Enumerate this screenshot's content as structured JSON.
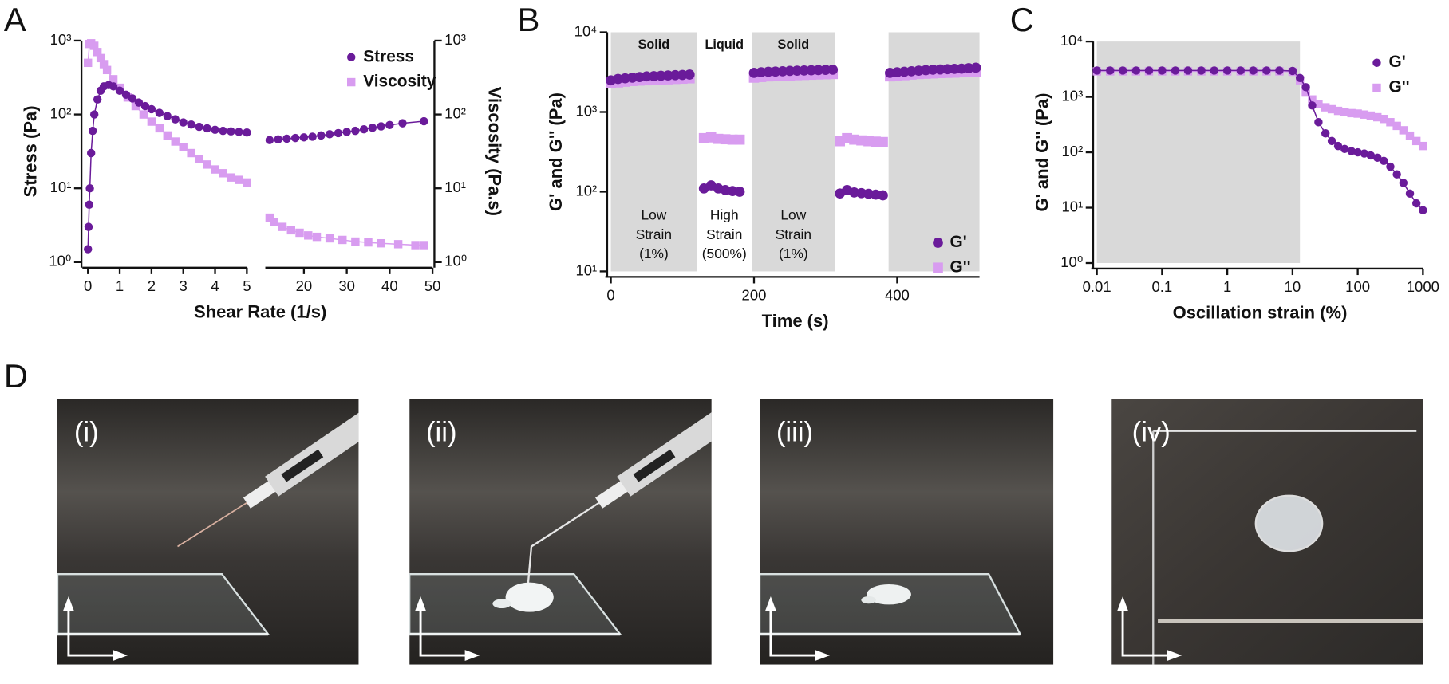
{
  "panel_labels": [
    "A",
    "B",
    "C",
    "D"
  ],
  "photo_labels": [
    "(i)",
    "(ii)",
    "(iii)",
    "(iv)"
  ],
  "chart_data": [
    {
      "type": "line",
      "xlabel": "Shear Rate (1/s)",
      "ylabel": "Stress (Pa)",
      "y2label": "Viscosity (Pa.s)",
      "x_segments": [
        {
          "xlim": [
            0,
            5
          ],
          "xticks": [
            0,
            1,
            2,
            3,
            4,
            5
          ]
        },
        {
          "xlim": [
            11,
            50
          ],
          "xticks": [
            20,
            30,
            40,
            50
          ]
        }
      ],
      "ylog": true,
      "ylim": [
        1,
        1000
      ],
      "yticks": [
        {
          "value": 1,
          "label": "10⁰"
        },
        {
          "value": 10,
          "label": "10¹"
        },
        {
          "value": 100,
          "label": "10²"
        },
        {
          "value": 1000,
          "label": "10³"
        }
      ],
      "y2lim": [
        1,
        1000
      ],
      "y2ticks": [
        {
          "value": 1,
          "label": "10⁰"
        },
        {
          "value": 10,
          "label": "10¹"
        },
        {
          "value": 100,
          "label": "10²"
        },
        {
          "value": 1000,
          "label": "10³"
        }
      ],
      "legend": "upper right",
      "series": [
        {
          "name": "Stress",
          "color": "#6a1b9a",
          "marker": "circle",
          "x": [
            0,
            0.02,
            0.04,
            0.06,
            0.1,
            0.15,
            0.2,
            0.3,
            0.4,
            0.5,
            0.65,
            0.8,
            1,
            1.2,
            1.4,
            1.6,
            1.8,
            2,
            2.25,
            2.5,
            2.75,
            3,
            3.25,
            3.5,
            3.75,
            4,
            4.25,
            4.5,
            4.75,
            5,
            12,
            14,
            16,
            18,
            20,
            22,
            24,
            26,
            28,
            30,
            32,
            34,
            36,
            38,
            40,
            43,
            48
          ],
          "values": [
            1.5,
            3,
            6,
            10,
            30,
            60,
            100,
            160,
            210,
            240,
            250,
            240,
            210,
            185,
            165,
            145,
            130,
            118,
            105,
            95,
            86,
            78,
            73,
            68,
            65,
            62,
            60,
            59,
            58,
            57,
            45,
            46,
            47,
            48,
            49,
            50,
            52,
            54,
            56,
            58,
            60,
            63,
            66,
            69,
            72,
            76,
            81
          ]
        },
        {
          "name": "Viscosity",
          "color": "#d89cf0",
          "marker": "square",
          "axis": "y2",
          "x": [
            0,
            0.05,
            0.1,
            0.2,
            0.3,
            0.4,
            0.5,
            0.6,
            0.8,
            1,
            1.25,
            1.5,
            1.75,
            2,
            2.25,
            2.5,
            2.75,
            3,
            3.25,
            3.5,
            3.75,
            4,
            4.25,
            4.5,
            4.75,
            5,
            12,
            13,
            15,
            17,
            19,
            21,
            23,
            26,
            29,
            32,
            35,
            38,
            42,
            46,
            48
          ],
          "values": [
            500,
            900,
            920,
            850,
            700,
            580,
            480,
            400,
            300,
            230,
            170,
            130,
            100,
            80,
            65,
            52,
            43,
            36,
            30,
            25,
            21,
            18,
            16,
            14,
            13,
            12,
            4,
            3.5,
            3,
            2.7,
            2.5,
            2.3,
            2.2,
            2.1,
            2,
            1.9,
            1.85,
            1.8,
            1.75,
            1.7,
            1.7
          ]
        }
      ]
    },
    {
      "type": "scatter",
      "xlabel": "Time (s)",
      "ylabel": "G' and G'' (Pa)",
      "xlim": [
        0,
        515
      ],
      "xticks": [
        0,
        200,
        400
      ],
      "ylog": true,
      "ylim": [
        10,
        10000
      ],
      "yticks": [
        {
          "value": 10,
          "label": "10¹"
        },
        {
          "value": 100,
          "label": "10²"
        },
        {
          "value": 1000,
          "label": "10³"
        },
        {
          "value": 10000,
          "label": "10⁴"
        }
      ],
      "shade_color": "#d9d9d9",
      "phases": [
        {
          "xlim": [
            0,
            120
          ],
          "shaded": true,
          "label": "Solid",
          "strain": [
            "Low",
            "Strain",
            "(1%)"
          ]
        },
        {
          "xlim": [
            120,
            197
          ],
          "shaded": false,
          "label": "Liquid",
          "strain": [
            "High",
            "Strain",
            "(500%)"
          ]
        },
        {
          "xlim": [
            197,
            313
          ],
          "shaded": true,
          "label": "Solid",
          "strain": [
            "Low",
            "Strain",
            "(1%)"
          ]
        },
        {
          "xlim": [
            313,
            388
          ],
          "shaded": false
        },
        {
          "xlim": [
            388,
            515
          ],
          "shaded": true
        }
      ],
      "legend": "lower right",
      "x": [
        0,
        10,
        20,
        30,
        40,
        50,
        60,
        70,
        80,
        90,
        100,
        110,
        120,
        130,
        140,
        150,
        160,
        170,
        180,
        190,
        200,
        210,
        220,
        230,
        240,
        250,
        260,
        270,
        280,
        290,
        300,
        310,
        315,
        320,
        330,
        340,
        350,
        360,
        370,
        380,
        385,
        390,
        400,
        410,
        420,
        430,
        440,
        450,
        460,
        470,
        480,
        490,
        500,
        510
      ],
      "series": [
        {
          "name": "G'",
          "color": "#6a1b9a",
          "marker": "circle",
          "values": [
            2500,
            2600,
            2650,
            2700,
            2750,
            2800,
            2820,
            2850,
            2880,
            2900,
            2920,
            2950,
            null,
            110,
            120,
            110,
            105,
            102,
            100,
            null,
            3100,
            3150,
            3200,
            3220,
            3250,
            3280,
            3300,
            3320,
            3340,
            3360,
            3380,
            3400,
            null,
            95,
            105,
            98,
            96,
            94,
            92,
            90,
            null,
            3100,
            3150,
            3200,
            3250,
            3300,
            3350,
            3400,
            3420,
            3450,
            3480,
            3500,
            3550,
            3600
          ]
        },
        {
          "name": "G''",
          "color": "#d89cf0",
          "marker": "square",
          "values": [
            2300,
            2350,
            2400,
            2450,
            2480,
            2500,
            2520,
            2550,
            2570,
            2600,
            2620,
            2650,
            null,
            470,
            480,
            460,
            455,
            450,
            450,
            null,
            2700,
            2750,
            2800,
            2820,
            2850,
            2870,
            2900,
            2920,
            2940,
            2960,
            2980,
            3000,
            null,
            430,
            470,
            450,
            440,
            430,
            425,
            420,
            null,
            2800,
            2850,
            2900,
            2950,
            3000,
            3020,
            3050,
            3080,
            3100,
            3120,
            3150,
            3180,
            3200
          ]
        }
      ]
    },
    {
      "type": "line",
      "xlabel": "Oscillation strain (%)",
      "ylabel": "G' and G'' (Pa)",
      "xlog": true,
      "xlim": [
        0.01,
        1000
      ],
      "xticks": [
        0.01,
        0.1,
        1,
        10,
        100,
        1000
      ],
      "ylog": true,
      "ylim": [
        1,
        10000
      ],
      "yticks": [
        {
          "value": 1,
          "label": "10⁰"
        },
        {
          "value": 10,
          "label": "10¹"
        },
        {
          "value": 100,
          "label": "10²"
        },
        {
          "value": 1000,
          "label": "10³"
        },
        {
          "value": 10000,
          "label": "10⁴"
        }
      ],
      "shade_color": "#d9d9d9",
      "shaded": [
        0.01,
        13
      ],
      "legend": "upper right",
      "x": [
        0.01,
        0.016,
        0.025,
        0.04,
        0.063,
        0.1,
        0.16,
        0.25,
        0.4,
        0.63,
        1,
        1.6,
        2.5,
        4,
        6.3,
        10,
        13,
        16,
        20,
        25,
        32,
        40,
        50,
        63,
        80,
        100,
        126,
        158,
        200,
        251,
        316,
        398,
        501,
        631,
        794,
        1000
      ],
      "series": [
        {
          "name": "G'",
          "color": "#6a1b9a",
          "marker": "circle",
          "values": [
            3000,
            3000,
            3000,
            3000,
            3000,
            3000,
            3000,
            3000,
            3000,
            3000,
            3000,
            3000,
            3000,
            3000,
            3000,
            2950,
            2200,
            1500,
            700,
            350,
            220,
            160,
            130,
            115,
            105,
            100,
            95,
            88,
            80,
            70,
            55,
            40,
            28,
            18,
            12,
            9
          ]
        },
        {
          "name": "G''",
          "color": "#d89cf0",
          "marker": "square",
          "values": [
            2900,
            2900,
            2900,
            2900,
            2900,
            2900,
            2900,
            2900,
            2900,
            2900,
            2900,
            2900,
            2900,
            2900,
            2900,
            2850,
            2000,
            1200,
            900,
            750,
            650,
            600,
            560,
            530,
            510,
            500,
            480,
            460,
            430,
            400,
            350,
            300,
            250,
            200,
            160,
            130
          ]
        }
      ]
    }
  ]
}
